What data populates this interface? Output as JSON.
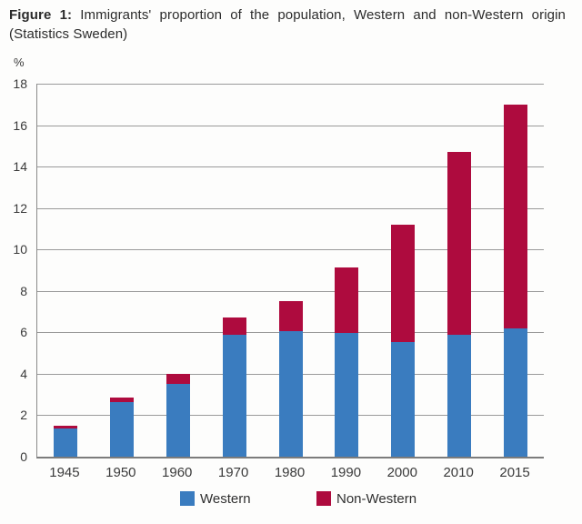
{
  "title": {
    "prefix": "Figure 1:",
    "main": "Immigrants' proportion of the population, Western and non-Western origin",
    "source": "(Statistics Sweden)"
  },
  "chart_data": {
    "type": "bar",
    "stacked": true,
    "title": "Immigrants' proportion of the population, Western and non-Western origin (Statistics Sweden)",
    "unit_label": "%",
    "categories": [
      "1945",
      "1950",
      "1960",
      "1970",
      "1980",
      "1990",
      "2000",
      "2010",
      "2015"
    ],
    "series": [
      {
        "name": "Western",
        "color": "#3a7cbf",
        "values": [
          1.35,
          2.65,
          3.5,
          5.9,
          6.05,
          5.95,
          5.55,
          5.9,
          6.2
        ]
      },
      {
        "name": "Non-Western",
        "color": "#ae0b3e",
        "values": [
          0.15,
          0.2,
          0.5,
          0.8,
          1.45,
          3.2,
          5.65,
          8.8,
          10.8
        ]
      }
    ],
    "totals": [
      1.5,
      2.85,
      4.0,
      6.7,
      7.5,
      9.15,
      11.2,
      14.7,
      17.0
    ],
    "ylim": [
      0,
      18
    ],
    "yticks": [
      0,
      2,
      4,
      6,
      8,
      10,
      12,
      14,
      16,
      18
    ],
    "grid": true,
    "legend_position": "bottom"
  },
  "colors": {
    "western": "#3a7cbf",
    "non_western": "#ae0b3e",
    "gridline": "#9a9a9a",
    "axis": "#7c7c7c",
    "text": "#3a3a3a"
  }
}
